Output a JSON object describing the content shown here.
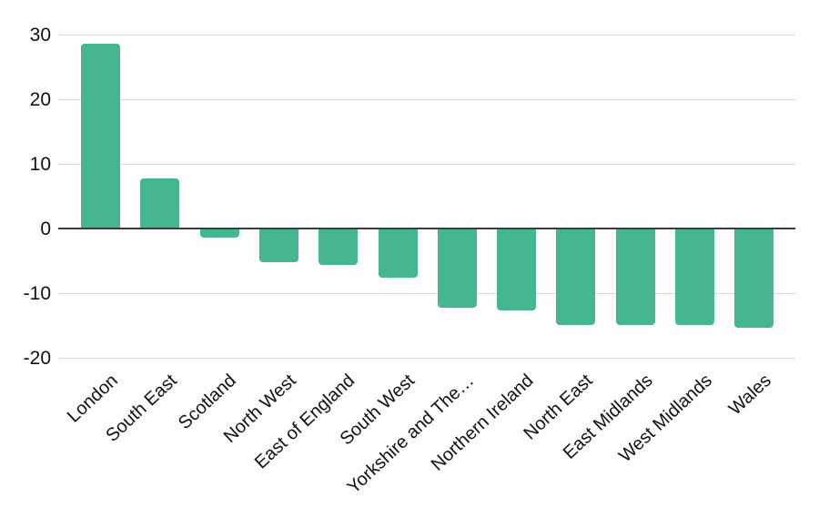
{
  "chart_data": {
    "type": "bar",
    "title": "",
    "xlabel": "",
    "ylabel": "",
    "categories": [
      "London",
      "South East",
      "Scotland",
      "North West",
      "East of England",
      "South West",
      "Yorkshire and The…",
      "Northern Ireland",
      "North East",
      "East Midlands",
      "West Midlands",
      "Wales"
    ],
    "values": [
      28.6,
      7.8,
      -1.4,
      -5.1,
      -5.5,
      -7.5,
      -12.2,
      -12.6,
      -14.8,
      -14.9,
      -14.9,
      -15.3
    ],
    "yticks": [
      30,
      20,
      10,
      0,
      -10,
      -20
    ],
    "ylim": [
      -20,
      30
    ],
    "grid": true,
    "legend": "none",
    "colors": {
      "bar": "#46b591",
      "gridline": "#d9d9d9",
      "zero_line": "#3c3c3c",
      "label": "#111111",
      "background": "#fdfefb"
    }
  }
}
